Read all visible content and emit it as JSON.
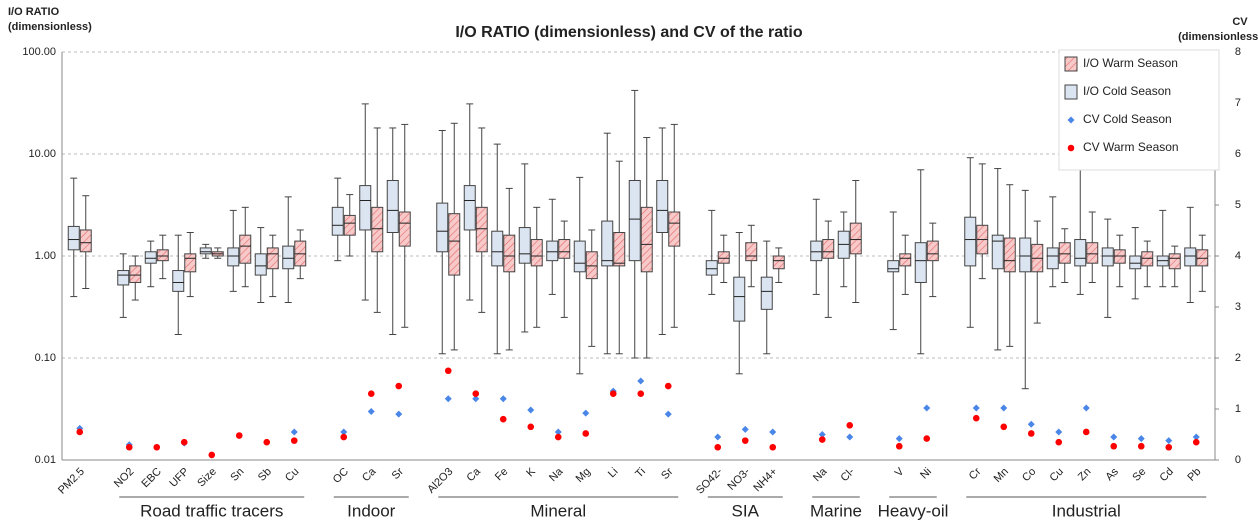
{
  "chart_data": {
    "type": "box",
    "title": "I/O RATIO (dimensionless) and CV of the ratio",
    "y_label": [
      "I/O RATIO",
      "(dimensionless)"
    ],
    "y2_label": [
      "CV",
      "(dimensionless)"
    ],
    "log_y": true,
    "grid": true,
    "legend": "top-right",
    "ylim": [
      0.01,
      100
    ],
    "yticks": [
      {
        "value": 0.01,
        "label": "0.01"
      },
      {
        "value": 0.1,
        "label": "0.10"
      },
      {
        "value": 1,
        "label": "1.00"
      },
      {
        "value": 10,
        "label": "10.00"
      },
      {
        "value": 100,
        "label": "100.00"
      }
    ],
    "y2lim": [
      0,
      8
    ],
    "y2ticks": [
      0,
      1,
      2,
      3,
      4,
      5,
      6,
      7,
      8
    ],
    "groups": [
      {
        "label": null,
        "categories": [
          "PM2.5"
        ]
      },
      {
        "label": "Road traffic tracers",
        "categories": [
          "NO2",
          "EBC",
          "UFP",
          "Size",
          "Sn",
          "Sb",
          "Cu"
        ]
      },
      {
        "label": "Indoor",
        "categories": [
          "OC",
          "Ca",
          "Sr"
        ]
      },
      {
        "label": "Mineral",
        "categories": [
          "Al2O3",
          "Ca",
          "Fe",
          "K",
          "Na",
          "Mg",
          "Li",
          "Ti",
          "Sr"
        ]
      },
      {
        "label": "SIA",
        "categories": [
          "SO42-",
          "NO3-",
          "NH4+"
        ]
      },
      {
        "label": "Marine",
        "categories": [
          "Na",
          "Cl-"
        ]
      },
      {
        "label": "Heavy-oil",
        "categories": [
          "V",
          "Ni"
        ]
      },
      {
        "label": "Industrial",
        "categories": [
          "Cr",
          "Mn",
          "Co",
          "Cu",
          "Zn",
          "As",
          "Se",
          "Cd",
          "Pb"
        ]
      }
    ],
    "series": [
      {
        "name": "I/O Warm Season",
        "type": "box",
        "color": "#f8c9c9",
        "values": [
          [
            0.48,
            1.1,
            1.35,
            1.8,
            3.9
          ],
          [
            0.37,
            0.55,
            0.65,
            0.8,
            1.0
          ],
          [
            0.6,
            0.9,
            1.0,
            1.15,
            1.6
          ],
          [
            0.4,
            0.7,
            0.95,
            1.05,
            1.7
          ],
          [
            0.95,
            1.0,
            1.05,
            1.1,
            1.2
          ],
          [
            0.5,
            0.85,
            1.25,
            1.6,
            3.0
          ],
          [
            0.4,
            0.75,
            1.05,
            1.2,
            1.6
          ],
          [
            0.6,
            0.8,
            1.05,
            1.4,
            1.8
          ],
          [
            1.0,
            1.6,
            2.1,
            2.5,
            4.0
          ],
          [
            0.28,
            1.1,
            1.85,
            3.0,
            18
          ],
          [
            0.2,
            1.25,
            2.1,
            2.7,
            19.5
          ],
          [
            0.12,
            0.65,
            1.4,
            2.6,
            20
          ],
          [
            0.28,
            1.1,
            1.85,
            3.0,
            18
          ],
          [
            0.12,
            0.7,
            1.0,
            1.6,
            4.6
          ],
          [
            0.2,
            0.8,
            1.0,
            1.45,
            3.0
          ],
          [
            0.25,
            0.95,
            1.1,
            1.45,
            2.2
          ],
          [
            0.13,
            0.6,
            0.8,
            1.1,
            1.8
          ],
          [
            0.11,
            0.8,
            0.85,
            1.7,
            8.5
          ],
          [
            0.1,
            0.7,
            1.3,
            3.0,
            14.5
          ],
          [
            0.2,
            1.25,
            2.1,
            2.7,
            19.5
          ],
          [
            0.55,
            0.85,
            0.95,
            1.1,
            1.6
          ],
          [
            0.5,
            0.9,
            1.0,
            1.35,
            2.0
          ],
          [
            0.55,
            0.75,
            0.9,
            1.0,
            1.2
          ],
          [
            0.25,
            0.95,
            1.1,
            1.45,
            2.2
          ],
          [
            0.35,
            1.05,
            1.45,
            2.1,
            5.5
          ],
          [
            0.42,
            0.8,
            0.95,
            1.05,
            1.6
          ],
          [
            0.4,
            0.9,
            1.05,
            1.4,
            2.1
          ],
          [
            0.6,
            1.05,
            1.45,
            2.0,
            8.0
          ],
          [
            0.13,
            0.7,
            0.9,
            1.5,
            5.0
          ],
          [
            0.22,
            0.7,
            0.95,
            1.3,
            2.2
          ],
          [
            0.55,
            0.85,
            1.05,
            1.35,
            1.85
          ],
          [
            0.55,
            0.85,
            1.05,
            1.35,
            2.7
          ],
          [
            0.5,
            0.85,
            1.0,
            1.15,
            1.6
          ],
          [
            0.5,
            0.8,
            0.95,
            1.1,
            1.4
          ],
          [
            0.5,
            0.75,
            0.95,
            1.05,
            1.25
          ],
          [
            0.45,
            0.8,
            0.95,
            1.15,
            1.6
          ]
        ]
      },
      {
        "name": "I/O Cold Season",
        "type": "box",
        "color": "#dbe5f1",
        "values": [
          [
            0.4,
            1.15,
            1.45,
            1.95,
            5.8
          ],
          [
            0.25,
            0.52,
            0.65,
            0.72,
            1.05
          ],
          [
            0.5,
            0.85,
            0.95,
            1.1,
            1.4
          ],
          [
            0.17,
            0.45,
            0.55,
            0.72,
            1.6
          ],
          [
            0.95,
            1.05,
            1.1,
            1.2,
            1.3
          ],
          [
            0.45,
            0.8,
            1.0,
            1.2,
            2.8
          ],
          [
            0.35,
            0.65,
            0.8,
            1.05,
            1.9
          ],
          [
            0.35,
            0.75,
            0.95,
            1.25,
            3.8
          ],
          [
            0.9,
            1.6,
            2.0,
            3.0,
            5.8
          ],
          [
            0.37,
            1.8,
            3.5,
            4.9,
            31
          ],
          [
            0.17,
            1.7,
            2.8,
            5.5,
            18
          ],
          [
            0.11,
            1.1,
            1.75,
            3.3,
            17
          ],
          [
            0.37,
            1.8,
            3.5,
            4.9,
            31
          ],
          [
            0.11,
            0.8,
            1.1,
            1.75,
            12.5
          ],
          [
            0.18,
            0.85,
            1.05,
            1.9,
            8
          ],
          [
            0.42,
            0.9,
            1.1,
            1.4,
            3.6
          ],
          [
            0.07,
            0.7,
            0.85,
            1.4,
            5.9
          ],
          [
            0.11,
            0.8,
            0.9,
            2.2,
            16
          ],
          [
            0.1,
            0.9,
            2.3,
            5.5,
            42
          ],
          [
            0.17,
            1.7,
            2.8,
            5.5,
            18
          ],
          [
            0.42,
            0.65,
            0.75,
            0.9,
            2.8
          ],
          [
            0.07,
            0.23,
            0.4,
            0.62,
            1.7
          ],
          [
            0.11,
            0.3,
            0.45,
            0.62,
            1.4
          ],
          [
            0.42,
            0.9,
            1.1,
            1.4,
            3.6
          ],
          [
            0.5,
            0.95,
            1.3,
            1.75,
            2.7
          ],
          [
            0.19,
            0.7,
            0.75,
            0.9,
            2.7
          ],
          [
            0.11,
            0.55,
            0.9,
            1.35,
            7
          ],
          [
            0.2,
            0.8,
            1.45,
            2.4,
            9.2
          ],
          [
            0.12,
            0.75,
            1.4,
            1.6,
            7.2
          ],
          [
            0.05,
            0.7,
            1.0,
            1.5,
            4.4
          ],
          [
            0.5,
            0.75,
            1.0,
            1.2,
            3.8
          ],
          [
            0.42,
            0.8,
            0.95,
            1.45,
            9.0
          ],
          [
            0.25,
            0.8,
            1.0,
            1.2,
            2.3
          ],
          [
            0.38,
            0.75,
            0.85,
            1.0,
            1.9
          ],
          [
            0.5,
            0.8,
            0.9,
            1.0,
            2.8
          ],
          [
            0.35,
            0.8,
            1.0,
            1.2,
            3.0
          ]
        ]
      },
      {
        "name": "CV Cold Season",
        "type": "scatter",
        "marker": "diamond",
        "axis": "y2",
        "color": "#4a86e8",
        "values": [
          0.62,
          0.3,
          null,
          0.33,
          null,
          null,
          null,
          0.55,
          0.55,
          0.95,
          0.9,
          1.2,
          1.2,
          1.2,
          0.98,
          0.55,
          0.92,
          1.35,
          1.55,
          0.9,
          0.45,
          0.6,
          0.55,
          0.5,
          0.45,
          0.42,
          1.02,
          1.02,
          1.02,
          0.7,
          0.55,
          1.02,
          0.45,
          0.42,
          0.38,
          0.45
        ]
      },
      {
        "name": "CV Warm Season",
        "type": "scatter",
        "marker": "circle",
        "axis": "y2",
        "color": "#ff0000",
        "values": [
          0.55,
          0.25,
          0.25,
          0.35,
          0.1,
          0.48,
          0.35,
          0.38,
          0.45,
          1.3,
          1.45,
          1.75,
          1.3,
          0.8,
          0.65,
          0.45,
          0.52,
          1.3,
          1.3,
          1.45,
          0.25,
          0.38,
          0.25,
          0.4,
          0.68,
          0.27,
          0.42,
          0.82,
          0.65,
          0.52,
          0.35,
          0.55,
          0.27,
          0.27,
          0.25,
          0.35
        ]
      }
    ]
  }
}
